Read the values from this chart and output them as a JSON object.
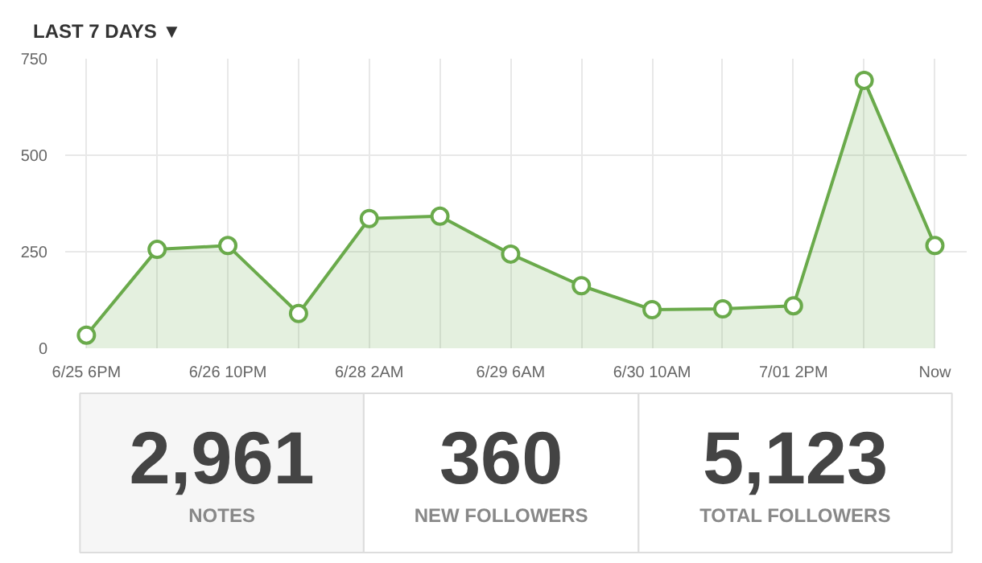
{
  "chart_data": [
    {
      "type": "area",
      "title": "LAST 7 DAYS ▼",
      "categories": [
        "6/25 6PM",
        null,
        "6/26 10PM",
        null,
        "6/28 2AM",
        null,
        "6/29 6AM",
        null,
        "6/30 10AM",
        null,
        "7/01 2PM",
        null,
        "Now"
      ],
      "series": [
        {
          "color": "#6aaa4b",
          "values": [
            34,
            256,
            266,
            90,
            336,
            342,
            244,
            162,
            100,
            102,
            110,
            694,
            266
          ]
        }
      ],
      "ylim": [
        0,
        750
      ],
      "yticks": [
        0,
        250,
        500,
        750
      ],
      "grid": true,
      "marker": "circle"
    },
    {
      "type": "other",
      "categories": [
        "NOTES",
        "NEW FOLLOWERS",
        "TOTAL FOLLOWERS"
      ],
      "annotations": [
        "2,961",
        "360",
        "5,123"
      ]
    }
  ]
}
